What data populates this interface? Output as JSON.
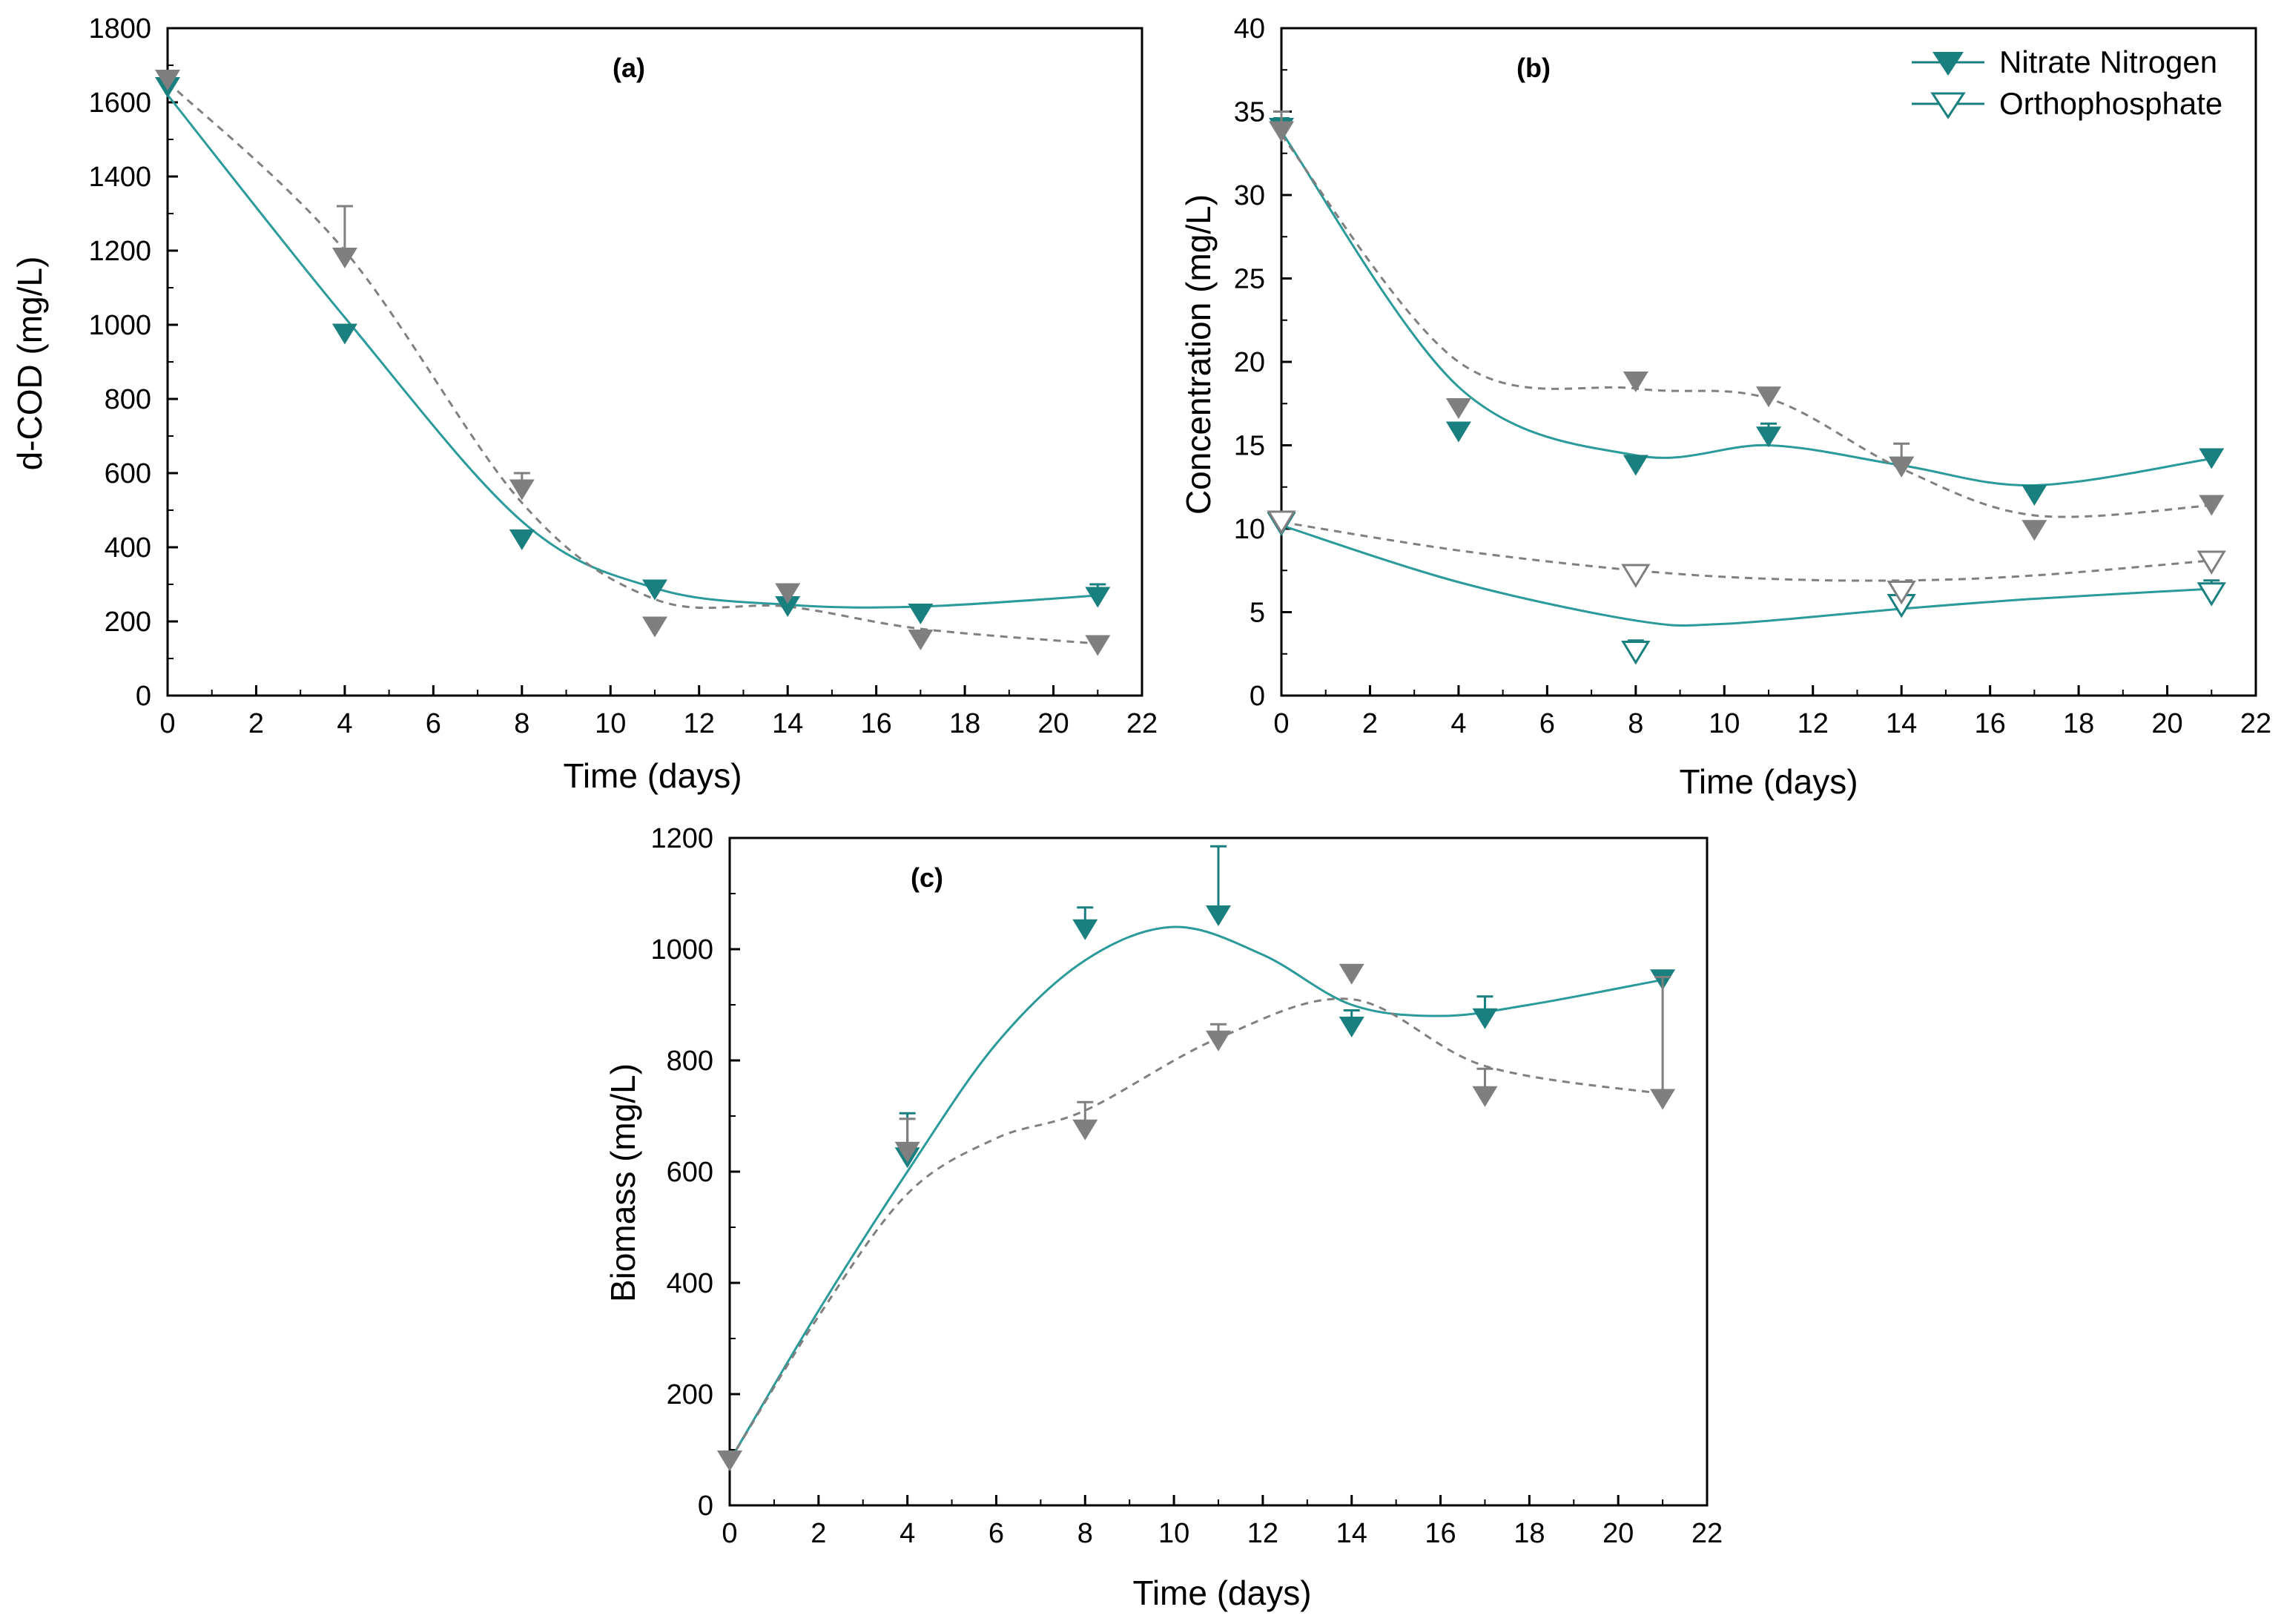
{
  "colors": {
    "teal": "#1a7f7f",
    "gray": "#7f7f7f",
    "fit_teal": "#2a9a9a",
    "fit_gray": "#808080"
  },
  "legend": {
    "nitrate_label": "Nitrate Nitrogen",
    "ortho_label": "Orthophosphate",
    "nitrate_icon": "filled-down-triangle-icon",
    "ortho_icon": "open-down-triangle-icon"
  },
  "chart_data": [
    {
      "panel": "(a)",
      "type": "scatter",
      "xlabel": "Time (days)",
      "ylabel": "d-COD (mg/L)",
      "xlim": [
        0,
        22
      ],
      "ylim": [
        0,
        1800
      ],
      "xticks": [
        0,
        2,
        4,
        6,
        8,
        10,
        12,
        14,
        16,
        18,
        20,
        22
      ],
      "yticks": [
        0,
        200,
        400,
        600,
        800,
        1000,
        1200,
        1400,
        1600,
        1800
      ],
      "series": [
        {
          "name": "teal",
          "style": "filled",
          "color": "teal",
          "x": [
            0,
            4,
            8,
            11,
            14,
            17,
            21
          ],
          "y": [
            1640,
            975,
            420,
            285,
            240,
            220,
            265
          ],
          "err": [
            30,
            15,
            15,
            20,
            15,
            10,
            35
          ],
          "fit": {
            "x": [
              0,
              4,
              8,
              11,
              14,
              17,
              21
            ],
            "y": [
              1620,
              1020,
              470,
              290,
              245,
              240,
              270
            ],
            "dashed": false
          }
        },
        {
          "name": "gray",
          "style": "filled",
          "color": "gray",
          "x": [
            0,
            4,
            8,
            11,
            14,
            17,
            21
          ],
          "y": [
            1660,
            1180,
            555,
            185,
            275,
            150,
            135
          ],
          "err": [
            25,
            140,
            45,
            10,
            15,
            10,
            25
          ],
          "fit": {
            "x": [
              0,
              4,
              8,
              11,
              14,
              17,
              21
            ],
            "y": [
              1655,
              1200,
              520,
              260,
              240,
              180,
              140
            ],
            "dashed": true
          }
        }
      ]
    },
    {
      "panel": "(b)",
      "type": "scatter",
      "xlabel": "Time (days)",
      "ylabel": "Concentration (mg/L)",
      "xlim": [
        0,
        22
      ],
      "ylim": [
        0,
        40
      ],
      "xticks": [
        0,
        2,
        4,
        6,
        8,
        10,
        12,
        14,
        16,
        18,
        20,
        22
      ],
      "yticks": [
        0,
        5,
        10,
        15,
        20,
        25,
        30,
        35,
        40
      ],
      "series": [
        {
          "name": "nitrate-teal",
          "style": "filled",
          "color": "teal",
          "x": [
            0,
            4,
            8,
            11,
            14,
            17,
            21
          ],
          "y": [
            34,
            15.8,
            13.8,
            15.5,
            13.7,
            12.0,
            14.2
          ],
          "err": [
            0.6,
            0.3,
            0.3,
            0.8,
            0.4,
            0.3,
            0.4
          ],
          "fit": {
            "x": [
              0,
              4,
              8,
              11,
              14,
              17,
              21
            ],
            "y": [
              33.8,
              18.5,
              14.4,
              15.0,
              13.8,
              12.6,
              14.2
            ],
            "dashed": false
          }
        },
        {
          "name": "nitrate-gray",
          "style": "filled",
          "color": "gray",
          "x": [
            0,
            4,
            8,
            11,
            14,
            17,
            21
          ],
          "y": [
            33.8,
            17.2,
            18.8,
            17.9,
            13.7,
            9.9,
            11.4
          ],
          "err": [
            1.2,
            0.4,
            0.4,
            0.4,
            1.4,
            0.3,
            0.3
          ],
          "fit": {
            "x": [
              0,
              4,
              8,
              11,
              14,
              17,
              21
            ],
            "y": [
              33.6,
              20.0,
              18.4,
              17.8,
              13.6,
              10.8,
              11.4
            ],
            "dashed": true
          }
        },
        {
          "name": "ortho-teal",
          "style": "open",
          "color": "teal",
          "x": [
            0,
            8,
            14,
            21
          ],
          "y": [
            10.3,
            2.6,
            5.4,
            6.1
          ],
          "err": [
            0.3,
            0.7,
            0.5,
            0.8
          ],
          "fit": {
            "x": [
              0,
              4,
              8,
              10,
              14,
              17,
              21
            ],
            "y": [
              10.2,
              6.8,
              4.5,
              4.3,
              5.2,
              5.8,
              6.4
            ],
            "dashed": false
          }
        },
        {
          "name": "ortho-gray",
          "style": "open",
          "color": "gray",
          "x": [
            0,
            8,
            14,
            21
          ],
          "y": [
            10.4,
            7.2,
            6.2,
            8.0
          ],
          "err": [
            0.3,
            0.3,
            0.4,
            0.4
          ],
          "fit": {
            "x": [
              0,
              4,
              8,
              11,
              14,
              17,
              21
            ],
            "y": [
              10.4,
              8.7,
              7.5,
              7.0,
              6.9,
              7.2,
              8.1
            ],
            "dashed": true
          }
        }
      ]
    },
    {
      "panel": "(c)",
      "type": "scatter",
      "xlabel": "Time (days)",
      "ylabel": "Biomass (mg/L)",
      "xlim": [
        0,
        22
      ],
      "ylim": [
        0,
        1200
      ],
      "xticks": [
        0,
        2,
        4,
        6,
        8,
        10,
        12,
        14,
        16,
        18,
        20,
        22
      ],
      "yticks": [
        0,
        200,
        400,
        600,
        800,
        1000,
        1200
      ],
      "series": [
        {
          "name": "teal",
          "style": "filled",
          "color": "teal",
          "x": [
            0,
            4,
            8,
            11,
            14,
            17,
            21
          ],
          "y": [
            80,
            625,
            1035,
            1060,
            860,
            875,
            945
          ],
          "err": [
            8,
            80,
            40,
            125,
            30,
            40,
            15
          ],
          "fit": {
            "x": [
              0,
              2,
              4,
              6,
              8,
              10,
              12,
              14,
              16,
              18,
              21
            ],
            "y": [
              80,
              350,
              600,
              830,
              980,
              1040,
              990,
              900,
              880,
              900,
              945
            ],
            "dashed": false
          }
        },
        {
          "name": "gray",
          "style": "filled",
          "color": "gray",
          "x": [
            0,
            4,
            8,
            11,
            14,
            17,
            21
          ],
          "y": [
            80,
            635,
            675,
            835,
            955,
            735,
            730
          ],
          "err": [
            8,
            60,
            50,
            30,
            10,
            50,
            220
          ],
          "fit": {
            "x": [
              0,
              2,
              4,
              6,
              8,
              11,
              14,
              17,
              21
            ],
            "y": [
              80,
              340,
              560,
              660,
              710,
              840,
              910,
              790,
              740
            ],
            "dashed": true
          }
        }
      ]
    }
  ]
}
